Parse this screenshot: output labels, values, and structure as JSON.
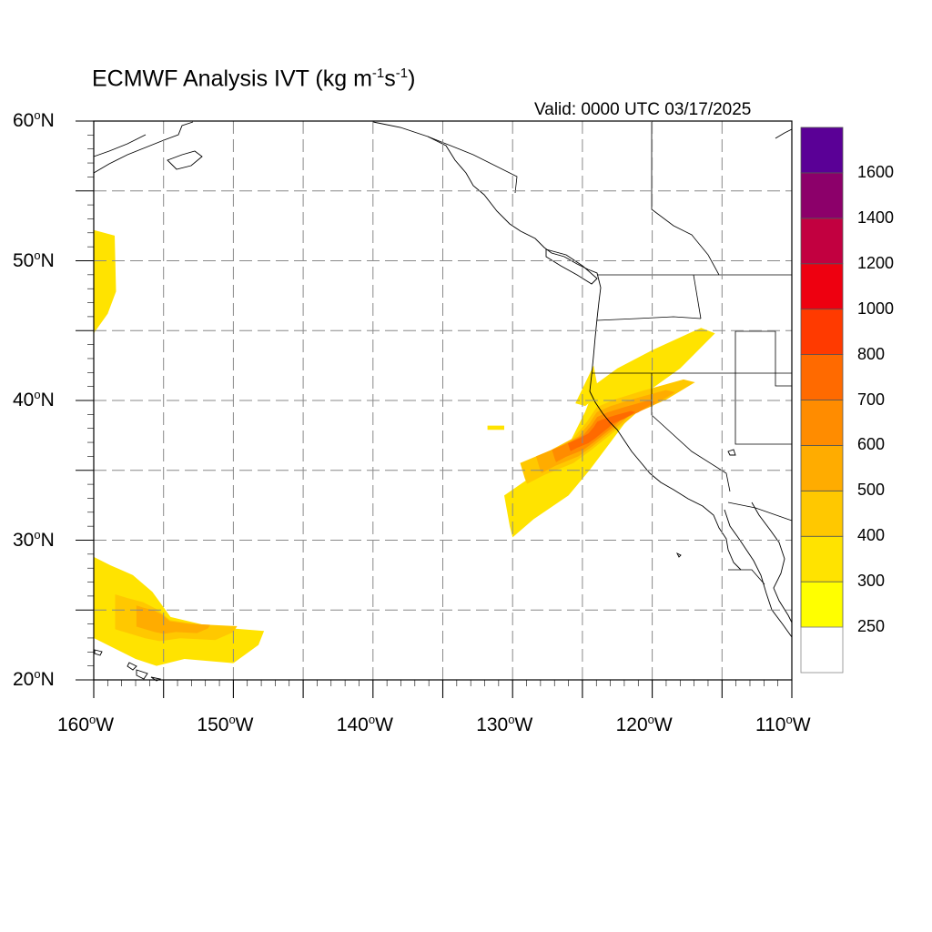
{
  "title": {
    "prefix": "ECMWF Analysis IVT (kg m",
    "exp1": "-1",
    "mid": "s",
    "exp2": "-1",
    "suffix": ")"
  },
  "valid_time": "Valid: 0000 UTC 03/17/2025",
  "map": {
    "lon_range": [
      -160,
      -110
    ],
    "lat_range": [
      20,
      60
    ],
    "grid": true,
    "grid_style": "dashed",
    "lat_ticks": [
      {
        "value": 60,
        "num": "60",
        "hemi": "N"
      },
      {
        "value": 50,
        "num": "50",
        "hemi": "N"
      },
      {
        "value": 40,
        "num": "40",
        "hemi": "N"
      },
      {
        "value": 30,
        "num": "30",
        "hemi": "N"
      },
      {
        "value": 20,
        "num": "20",
        "hemi": "N"
      }
    ],
    "lon_ticks": [
      {
        "value": -160,
        "num": "160",
        "hemi": "W"
      },
      {
        "value": -150,
        "num": "150",
        "hemi": "W"
      },
      {
        "value": -140,
        "num": "140",
        "hemi": "W"
      },
      {
        "value": -130,
        "num": "130",
        "hemi": "W"
      },
      {
        "value": -120,
        "num": "120",
        "hemi": "W"
      },
      {
        "value": -110,
        "num": "110",
        "hemi": "W"
      }
    ],
    "degree_symbol": "o",
    "ivt_features": [
      {
        "name": "california-atmospheric-river",
        "max_level": 700,
        "outline_lonlat": [
          [
            -130,
            30.2
          ],
          [
            -128.5,
            31.5
          ],
          [
            -126,
            33.2
          ],
          [
            -124.5,
            35
          ],
          [
            -123,
            37
          ],
          [
            -121.5,
            39
          ],
          [
            -120.5,
            40.5
          ],
          [
            -118,
            42.3
          ],
          [
            -115.5,
            44.8
          ],
          [
            -116.5,
            45.2
          ],
          [
            -120,
            43.6
          ],
          [
            -122.5,
            42.3
          ],
          [
            -124,
            41.2
          ],
          [
            -124.8,
            39.2
          ],
          [
            -126,
            36.8
          ],
          [
            -128,
            35
          ],
          [
            -130.6,
            33.2
          ],
          [
            -130.2,
            31
          ]
        ]
      },
      {
        "name": "pacific-plume-north",
        "max_level": 300,
        "outline_lonlat": [
          [
            -125.5,
            39.8
          ],
          [
            -124.2,
            42.5
          ],
          [
            -123.8,
            40.4
          ],
          [
            -124.8,
            39.6
          ]
        ]
      },
      {
        "name": "pacific-speck",
        "max_level": 250,
        "outline_lonlat": [
          [
            -131.8,
            38.2
          ],
          [
            -130.6,
            38.2
          ],
          [
            -130.6,
            37.9
          ],
          [
            -131.8,
            37.9
          ]
        ]
      },
      {
        "name": "north-pacific-band",
        "max_level": 300,
        "outline_lonlat": [
          [
            -160,
            52.2
          ],
          [
            -158.5,
            51.8
          ],
          [
            -158.4,
            47.8
          ],
          [
            -159,
            46.2
          ],
          [
            -160,
            44.8
          ]
        ]
      },
      {
        "name": "subtropical-plume",
        "max_level": 500,
        "outline_lonlat": [
          [
            -160,
            28.8
          ],
          [
            -158.8,
            28.2
          ],
          [
            -157.2,
            27.5
          ],
          [
            -155.8,
            26.3
          ],
          [
            -154.5,
            24.5
          ],
          [
            -151.5,
            23.8
          ],
          [
            -147.8,
            23.5
          ],
          [
            -148.2,
            22.5
          ],
          [
            -150,
            21.2
          ],
          [
            -153.5,
            21.5
          ],
          [
            -155.5,
            21
          ],
          [
            -157,
            21.5
          ],
          [
            -160,
            23
          ]
        ]
      }
    ]
  },
  "colorbar": {
    "levels": [
      "250",
      "300",
      "400",
      "500",
      "600",
      "700",
      "800",
      "1000",
      "1200",
      "1400",
      "1600"
    ],
    "colors": [
      "#ffff00",
      "#ffe300",
      "#ffc800",
      "#ffac00",
      "#ff8c00",
      "#ff6a00",
      "#ff3a00",
      "#ee0010",
      "#c20040",
      "#8c006a",
      "#5a0096"
    ],
    "lowest_color": "#ffffff"
  }
}
